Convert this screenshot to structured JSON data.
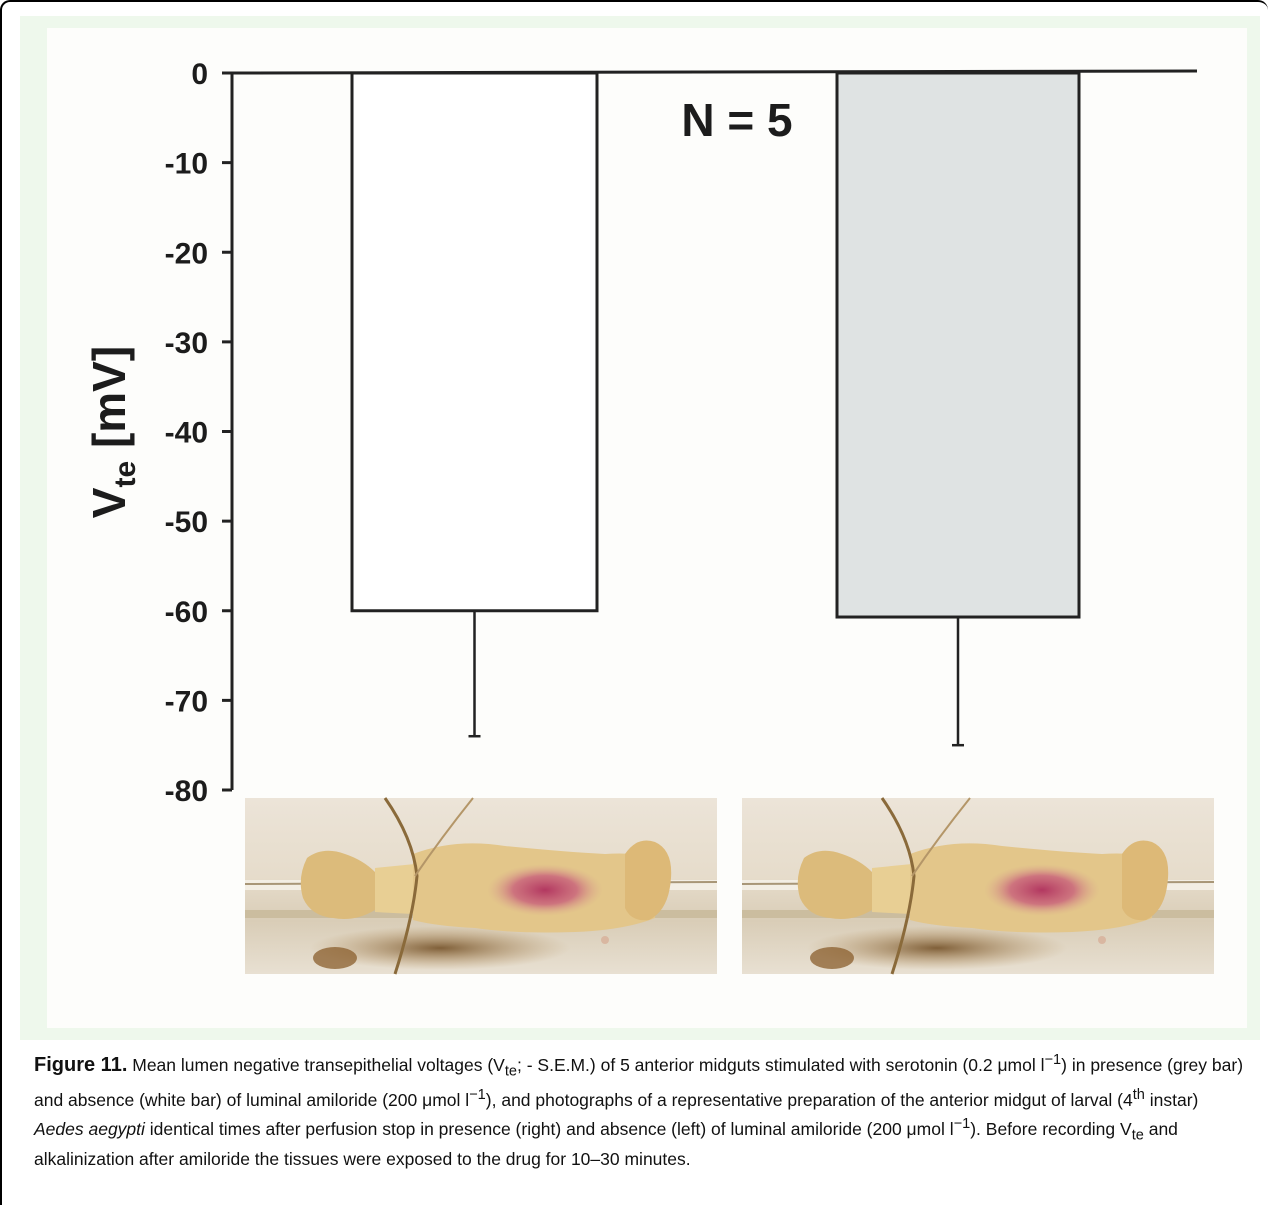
{
  "chart_data": {
    "type": "bar",
    "ylabel": "Vte [mV]",
    "ylim": [
      -80,
      0
    ],
    "yticks": [
      0,
      -10,
      -20,
      -30,
      -40,
      -50,
      -60,
      -70,
      -80
    ],
    "categories": [
      "absence of luminal amiloride (white bar)",
      "presence of luminal amiloride (grey bar)"
    ],
    "values": [
      -60,
      -60.7
    ],
    "error_minus": [
      14,
      14.3
    ],
    "bar_colors": [
      "#ffffff",
      "#dfe3e3"
    ],
    "annotation": "N = 5",
    "grid": false
  },
  "photos": [
    {
      "name": "midgut-photo-left-absence"
    },
    {
      "name": "midgut-photo-right-presence"
    }
  ],
  "caption": {
    "label": "Figure 11.",
    "p1": " Mean lumen negative transepithelial voltages (V",
    "sub_te1": "te",
    "p2": "; - S.E.M.) of 5 anterior midguts stimulated with serotonin (0.2 μmol l",
    "sup1": "−1",
    "p3": ") in presence (grey bar) and absence (white bar) of luminal amiloride (200 μmol l",
    "sup2": "−1",
    "p4": "), and photographs of a representative preparation of the anterior midgut of larval (4",
    "sup_th": "th",
    "p5": " instar) ",
    "species": "Aedes aegypti",
    "p6": " identical times after perfusion stop in presence (right) and absence (left) of luminal amiloride (200 μmol l",
    "sup3": "−1",
    "p7": "). Before recording V",
    "sub_te2": "te",
    "p8": " and alkalinization after amiloride the tissues were exposed to the drug for 10–30 minutes."
  }
}
